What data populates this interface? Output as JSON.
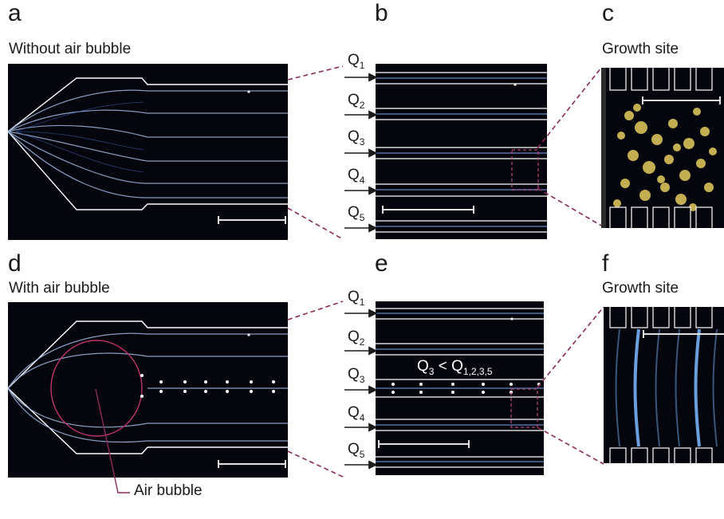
{
  "panels": {
    "a": {
      "label": "a",
      "title": "Without air bubble"
    },
    "b": {
      "label": "b"
    },
    "c": {
      "label": "c",
      "title": "Growth site"
    },
    "d": {
      "label": "d",
      "title": "With air bubble"
    },
    "e": {
      "label": "e",
      "overlay_main": "Q",
      "overlay_sub1": "3",
      "overlay_rel": " < Q",
      "overlay_sub2": "1,2,3,5"
    },
    "f": {
      "label": "f",
      "title": "Growth site"
    }
  },
  "flow_labels_b": [
    {
      "main": "Q",
      "sub": "1"
    },
    {
      "main": "Q",
      "sub": "2"
    },
    {
      "main": "Q",
      "sub": "3"
    },
    {
      "main": "Q",
      "sub": "4"
    },
    {
      "main": "Q",
      "sub": "5"
    }
  ],
  "flow_labels_e": [
    {
      "main": "Q",
      "sub": "1"
    },
    {
      "main": "Q",
      "sub": "2"
    },
    {
      "main": "Q",
      "sub": "3"
    },
    {
      "main": "Q",
      "sub": "4"
    },
    {
      "main": "Q",
      "sub": "5"
    }
  ],
  "callout": {
    "air_bubble": "Air bubble"
  },
  "colors": {
    "background": "#05050d",
    "channel_wall": "#ffffff",
    "bubble_outline": "#c0346f",
    "callout_line": "#8a2a5c",
    "connector": "#8a2a5c",
    "growth_c": "#d8c25a",
    "growth_f": "#6ea8e8"
  }
}
